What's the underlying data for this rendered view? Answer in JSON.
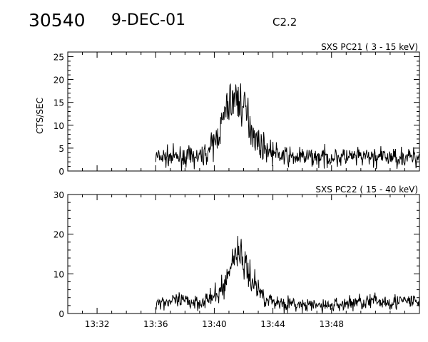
{
  "header": {
    "event_id": "30540",
    "date": "9-DEC-01",
    "flare_class": "C2.2"
  },
  "chart_data": [
    {
      "type": "line",
      "title": "SXS PC21  (  3 - 15 keV)",
      "ylabel": "CTS/SEC",
      "xlabel": "",
      "xlim": [
        "13:30",
        "13:54"
      ],
      "ylim": [
        0,
        26
      ],
      "yticks": [
        0,
        5,
        10,
        15,
        20,
        25
      ],
      "xticks": [
        "13:32",
        "13:36",
        "13:40",
        "13:44",
        "13:48"
      ],
      "xtick_labels_shown": false,
      "grid": false,
      "series": [
        {
          "x": [
            "13:36",
            "13:37",
            "13:38",
            "13:39",
            "13:39:30",
            "13:40",
            "13:40:30",
            "13:41",
            "13:41:30",
            "13:42",
            "13:42:30",
            "13:43",
            "13:43:30",
            "13:44",
            "13:45",
            "13:46",
            "13:48",
            "13:50",
            "13:52",
            "13:54"
          ],
          "values": [
            3,
            3,
            3,
            3,
            4,
            6,
            10,
            15,
            16,
            14,
            10,
            6,
            5,
            4,
            3,
            3,
            3,
            3,
            3,
            3
          ]
        }
      ]
    },
    {
      "type": "line",
      "title": "SXS PC22  ( 15 - 40 keV)",
      "ylabel": "",
      "xlabel": "",
      "xlim": [
        "13:30",
        "13:54"
      ],
      "ylim": [
        0,
        30
      ],
      "yticks": [
        0,
        10,
        20,
        30
      ],
      "xticks": [
        "13:32",
        "13:36",
        "13:40",
        "13:44",
        "13:48"
      ],
      "xtick_labels_shown": true,
      "grid": false,
      "series": [
        {
          "x": [
            "13:36",
            "13:37",
            "13:38",
            "13:39",
            "13:40",
            "13:40:30",
            "13:41",
            "13:41:20",
            "13:41:40",
            "13:42",
            "13:42:20",
            "13:43",
            "13:43:30",
            "13:44",
            "13:46",
            "13:48",
            "13:50",
            "13:52",
            "13:54"
          ],
          "values": [
            3,
            3,
            3,
            3,
            4,
            6,
            10,
            15,
            16,
            13,
            10,
            6,
            4,
            3,
            2,
            2,
            3,
            3,
            3
          ]
        }
      ]
    }
  ]
}
